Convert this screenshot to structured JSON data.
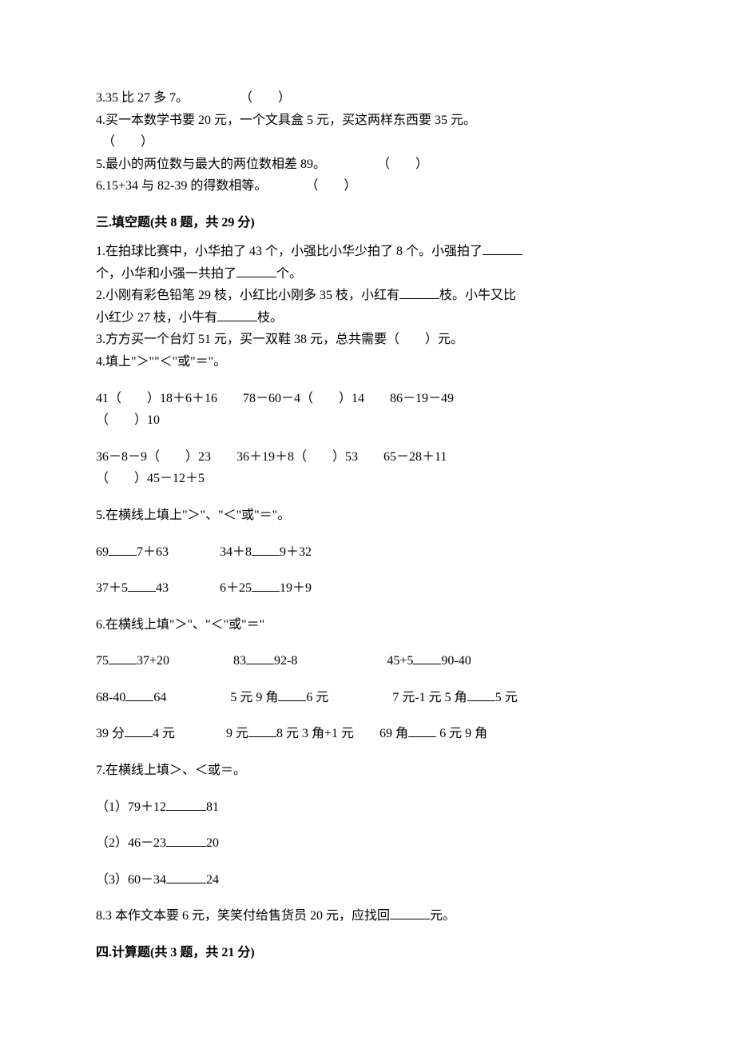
{
  "q2_3": "3.35 比 27 多 7。　　　　　（　　）",
  "q2_4a": "4.买一本数学书要 20 元，一个文具盒 5 元，买这两样东西要 35 元。",
  "q2_4b": "　（　　）",
  "q2_5": "5.最小的两位数与最大的两位数相差 89。　　　　　（　　）",
  "q2_6": "6.15+34 与 82-39 的得数相等。　　　　（　　）",
  "section3_title": "三.填空题(共 8 题，共 29 分)",
  "q3_1a_pre": "1.在拍球比赛中，小华拍了 43 个，小强比小华少拍了 8 个。小强拍了",
  "q3_1b_pre": "个，小华和小强一共拍了",
  "q3_1b_post": "个。",
  "q3_2a_pre": "2.小刚有彩色铅笔 29 枝，小红比小刚多 35 枝，小红有",
  "q3_2a_post": "枝。小牛又比",
  "q3_2b_pre": "小红少 27 枝，小牛有",
  "q3_2b_post": "枝。",
  "q3_3": "3.方方买一个台灯 51 元，买一双鞋 38 元，总共需要（　　）元。",
  "q3_4": "4.填上\"＞\"\"＜\"或\"＝\"。",
  "q3_4_row1": "41（　　）18＋6＋16　　78－60－4（　　）14　　86－19－49",
  "q3_4_row1b": "（　　）10",
  "q3_4_row2": "36－8－9（　　）23　　36＋19＋8（　　）53　　65－28＋11",
  "q3_4_row2b": "（　　）45－12＋5",
  "q3_5": "5.在横线上填上\"＞\"、\"＜\"或\"＝\"。",
  "q3_5_r1a": "69",
  "q3_5_r1b": "7＋63　　　　34＋8",
  "q3_5_r1c": "9＋32",
  "q3_5_r2a": "37＋5",
  "q3_5_r2b": "43　　　　6＋25",
  "q3_5_r2c": "19＋9",
  "q3_6": "6.在横线上填\"＞\"、\"＜\"或\"＝\"",
  "q3_6_r1a": "75",
  "q3_6_r1b": "37+20　　　　　83",
  "q3_6_r1c": "92-8　　　　　　　45+5",
  "q3_6_r1d": "90-40",
  "q3_6_r2a": "68-40",
  "q3_6_r2b": "64　　　　　5 元 9 角",
  "q3_6_r2c": "6 元　　　　　7 元-1 元 5 角",
  "q3_6_r2d": "5 元",
  "q3_6_r3a": "39 分",
  "q3_6_r3b": "4 元　　　　9 元",
  "q3_6_r3c": "8 元 3 角+1 元　　69 角",
  "q3_6_r3d": " 6 元 9 角",
  "q3_7": "7.在横线上填＞、＜或＝。",
  "q3_7_1a": "（1）79＋12",
  "q3_7_1b": "81",
  "q3_7_2a": "（2）46－23",
  "q3_7_2b": "20",
  "q3_7_3a": "（3）60－34",
  "q3_7_3b": "24",
  "q3_8a": "8.3 本作文本要 6 元，笑笑付给售货员 20 元，应找回",
  "q3_8b": "元。",
  "section4_title": "四.计算题(共 3 题，共 21 分)"
}
